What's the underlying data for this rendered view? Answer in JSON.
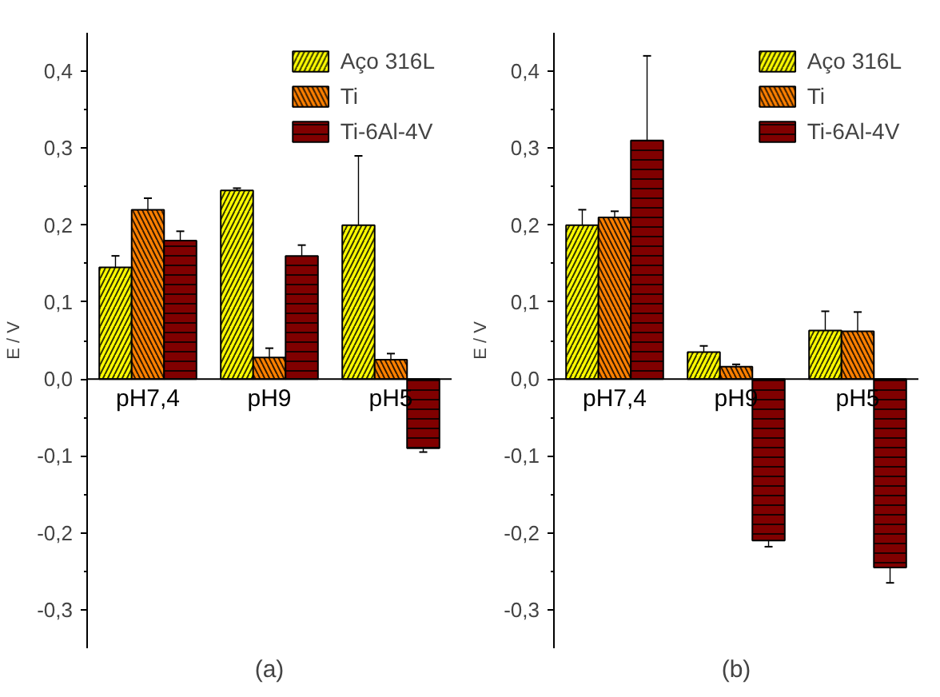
{
  "chart_data": [
    {
      "type": "bar",
      "xlabel": "(a)",
      "ylabel": "E / V",
      "categories": [
        "pH7,4",
        "pH9",
        "pH5"
      ],
      "ylim": [
        -0.35,
        0.45
      ],
      "yticks": [
        {
          "value": -0.3,
          "label": "-0,3"
        },
        {
          "value": -0.2,
          "label": "-0,2"
        },
        {
          "value": -0.1,
          "label": "-0,1"
        },
        {
          "value": 0.0,
          "label": "0,0"
        },
        {
          "value": 0.1,
          "label": "0,1"
        },
        {
          "value": 0.2,
          "label": "0,2"
        },
        {
          "value": 0.3,
          "label": "0,3"
        },
        {
          "value": 0.4,
          "label": "0,4"
        }
      ],
      "legend": "top right",
      "grid": false,
      "series": [
        {
          "name": "Aço 316L",
          "color": "#ffff00",
          "values": [
            0.145,
            0.245,
            0.2
          ],
          "errors": [
            0.015,
            0.003,
            0.09
          ]
        },
        {
          "name": "Ti",
          "color": "#ff8000",
          "values": [
            0.22,
            0.028,
            0.025
          ],
          "errors": [
            0.015,
            0.012,
            0.008
          ]
        },
        {
          "name": "Ti-6Al-4V",
          "color": "#800000",
          "values": [
            0.18,
            0.16,
            -0.09
          ],
          "errors": [
            0.012,
            0.014,
            0.005
          ]
        }
      ]
    },
    {
      "type": "bar",
      "xlabel": "(b)",
      "ylabel": "E / V",
      "categories": [
        "pH7,4",
        "pH9",
        "pH5"
      ],
      "ylim": [
        -0.35,
        0.45
      ],
      "yticks": [
        {
          "value": -0.3,
          "label": "-0,3"
        },
        {
          "value": -0.2,
          "label": "-0,2"
        },
        {
          "value": -0.1,
          "label": "-0,1"
        },
        {
          "value": 0.0,
          "label": "0,0"
        },
        {
          "value": 0.1,
          "label": "0,1"
        },
        {
          "value": 0.2,
          "label": "0,2"
        },
        {
          "value": 0.3,
          "label": "0,3"
        },
        {
          "value": 0.4,
          "label": "0,4"
        }
      ],
      "legend": "top right",
      "grid": false,
      "series": [
        {
          "name": "Aço 316L",
          "color": "#ffff00",
          "values": [
            0.2,
            0.035,
            0.063
          ],
          "errors": [
            0.02,
            0.008,
            0.025
          ]
        },
        {
          "name": "Ti",
          "color": "#ff8000",
          "values": [
            0.21,
            0.016,
            0.062
          ],
          "errors": [
            0.008,
            0.003,
            0.025
          ]
        },
        {
          "name": "Ti-6Al-4V",
          "color": "#800000",
          "values": [
            0.31,
            -0.21,
            -0.245
          ],
          "errors": [
            0.11,
            0.008,
            0.02
          ]
        }
      ]
    }
  ]
}
